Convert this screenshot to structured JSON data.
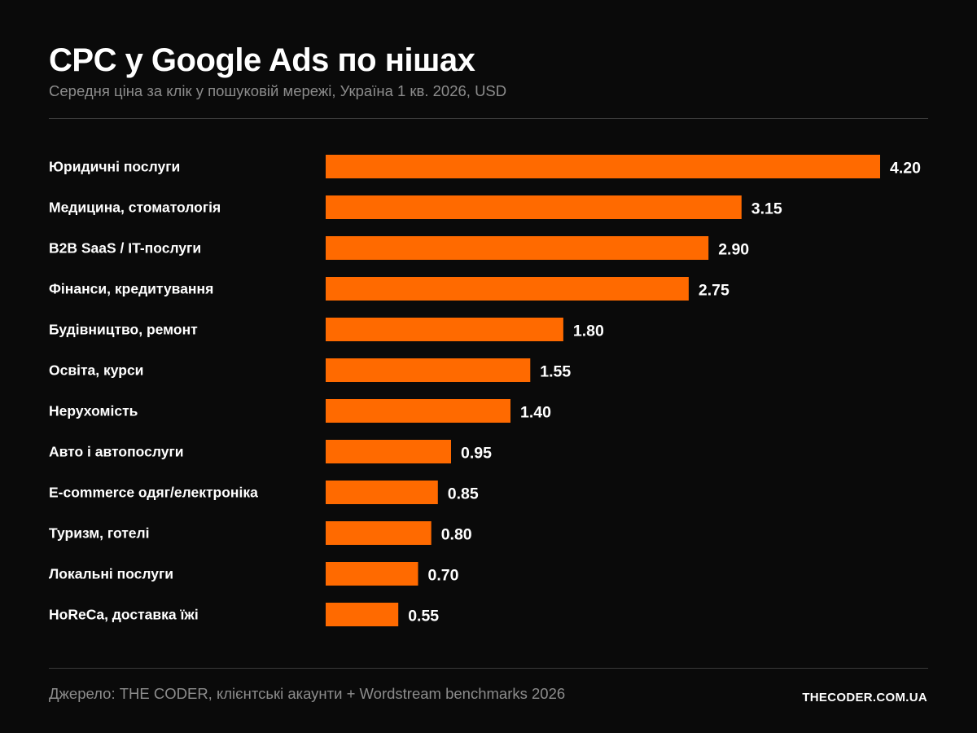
{
  "header": {
    "title": "CPC у Google Ads по нішах",
    "subtitle": "Середня ціна за клік у пошуковій мережі, Україна 1 кв. 2026, USD"
  },
  "footer": {
    "source": "Джерело: THE CODER, клієнтські акаунти + Wordstream benchmarks 2026",
    "brand": "THECODER.COM.UA"
  },
  "colors": {
    "background": "#0a0a0a",
    "bar": "#ff6a00",
    "text": "#ffffff",
    "muted": "#8c8c8c"
  },
  "chart_data": {
    "type": "bar",
    "orientation": "horizontal",
    "title": "CPC у Google Ads по нішах",
    "subtitle": "Середня ціна за клік у пошуковій мережі, Україна 1 кв. 2026, USD",
    "xlabel": "",
    "ylabel": "",
    "grid": false,
    "xlim": [
      0,
      4.2
    ],
    "categories": [
      "Юридичні послуги",
      "Медицина, стоматологія",
      "B2B SaaS / IT-послуги",
      "Фінанси, кредитування",
      "Будівництво, ремонт",
      "Освіта, курси",
      "Нерухомість",
      "Авто і автопослуги",
      "E-commerce одяг/електроніка",
      "Туризм, готелі",
      "Локальні послуги",
      "HoReCa, доставка їжі"
    ],
    "values": [
      4.2,
      3.15,
      2.9,
      2.75,
      1.8,
      1.55,
      1.4,
      0.95,
      0.85,
      0.8,
      0.7,
      0.55
    ],
    "value_labels": [
      "4.20",
      "3.15",
      "2.90",
      "2.75",
      "1.80",
      "1.55",
      "1.40",
      "0.95",
      "0.85",
      "0.80",
      "0.70",
      "0.55"
    ]
  }
}
